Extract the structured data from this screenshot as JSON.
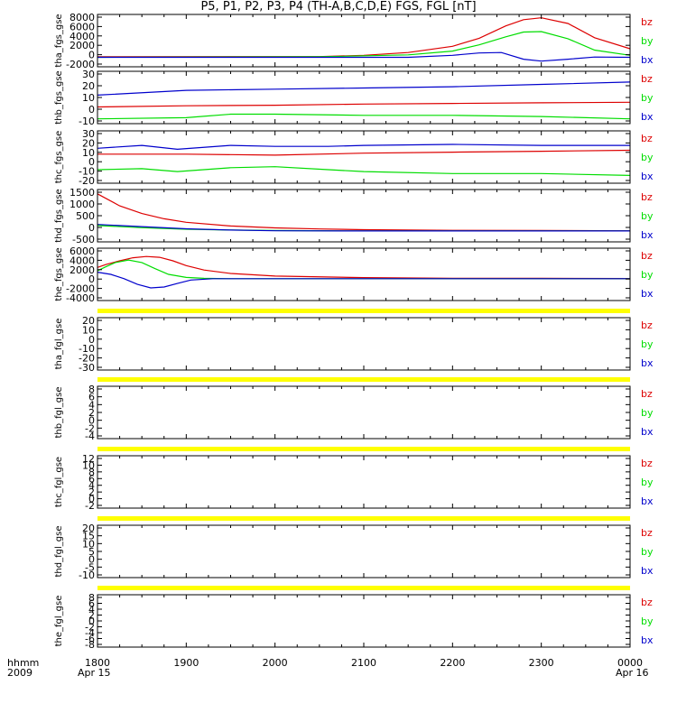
{
  "title": "P5, P1, P2, P3, P4 (TH-A,B,C,D,E) FGS, FGL [nT]",
  "footer": {
    "left_label_1": "hhmm",
    "left_label_2": "2009",
    "date_start": "Apr 15",
    "date_end": "Apr 16"
  },
  "colors": {
    "bz": "#dd0000",
    "by": "#00dd00",
    "bx": "#0000cc",
    "bar": "#ffff00"
  },
  "chart_data": {
    "type": "line",
    "x_axis": {
      "range": [
        "1800",
        "0000"
      ],
      "ticks": [
        "1800",
        "1900",
        "2000",
        "2100",
        "2200",
        "2300",
        "0000"
      ]
    },
    "legend_entries": [
      "bz",
      "by",
      "bx"
    ],
    "panels": [
      {
        "ylabel": "tha_fgs_gse",
        "ylim": [
          -2000,
          9000
        ],
        "yticks": [
          "8000",
          "6000",
          "4000",
          "2000",
          "0",
          "-2000"
        ],
        "series": [
          {
            "name": "bz",
            "x": [
              0,
              2.5,
              3,
              3.5,
              4,
              4.3,
              4.6,
              4.8,
              5,
              5.3,
              5.6,
              6
            ],
            "y": [
              100,
              150,
              400,
              1000,
              2300,
              4000,
              6600,
              7900,
              8300,
              7100,
              4100,
              1800
            ]
          },
          {
            "name": "by",
            "x": [
              0,
              2.5,
              3.5,
              4,
              4.3,
              4.6,
              4.8,
              5,
              5.3,
              5.6,
              6
            ],
            "y": [
              0,
              100,
              500,
              1300,
              2600,
              4300,
              5300,
              5400,
              3900,
              1500,
              400
            ]
          },
          {
            "name": "bx",
            "x": [
              0,
              3.5,
              4,
              4.3,
              4.55,
              4.8,
              5,
              5.3,
              5.6,
              6
            ],
            "y": [
              0,
              0,
              400,
              900,
              1000,
              -400,
              -800,
              -400,
              50,
              0
            ]
          }
        ]
      },
      {
        "ylabel": "thb_fgs_gse",
        "ylim": [
          -12,
          32
        ],
        "yticks": [
          "30",
          "20",
          "10",
          "0",
          "-10"
        ],
        "series": [
          {
            "name": "bz",
            "x": [
              0,
              1,
              2,
              3,
              4,
              5,
              6
            ],
            "y": [
              2,
              3,
              3.5,
              4.5,
              5,
              5.5,
              6
            ]
          },
          {
            "name": "by",
            "x": [
              0,
              1,
              1.5,
              2,
              3,
              4,
              5,
              6
            ],
            "y": [
              -8,
              -7,
              -4,
              -4,
              -5,
              -5,
              -6,
              -8
            ]
          },
          {
            "name": "bx",
            "x": [
              0,
              1,
              2,
              3,
              4,
              5,
              6
            ],
            "y": [
              12,
              16,
              17,
              18,
              19,
              21,
              23
            ]
          }
        ]
      },
      {
        "ylabel": "thc_fgs_gse",
        "ylim": [
          -22,
          32
        ],
        "yticks": [
          "30",
          "20",
          "10",
          "0",
          "-10",
          "-20"
        ],
        "series": [
          {
            "name": "bz",
            "x": [
              0,
              1,
              2,
              3,
              4,
              5,
              6
            ],
            "y": [
              8,
              8,
              7,
              9,
              10,
              11,
              12
            ]
          },
          {
            "name": "by",
            "x": [
              0,
              0.5,
              0.9,
              1.5,
              2,
              2.6,
              3,
              4,
              5,
              6
            ],
            "y": [
              -8,
              -7,
              -10,
              -6,
              -5,
              -8,
              -10,
              -12,
              -12,
              -14
            ]
          },
          {
            "name": "bx",
            "x": [
              0,
              0.5,
              0.9,
              1.5,
              2,
              2.6,
              3,
              4,
              5,
              6
            ],
            "y": [
              14,
              17,
              13,
              17,
              16,
              16,
              17,
              18,
              17,
              17
            ]
          }
        ]
      },
      {
        "ylabel": "thd_fgs_gse",
        "ylim": [
          -500,
          1900
        ],
        "yticks": [
          "1500",
          "1000",
          "500",
          "0",
          "-500"
        ],
        "series": [
          {
            "name": "bz",
            "x": [
              0,
              0.25,
              0.5,
              0.75,
              1,
              1.5,
              2,
              2.5,
              3,
              3.5,
              4,
              5,
              6
            ],
            "y": [
              1700,
              1150,
              800,
              560,
              400,
              230,
              140,
              90,
              60,
              40,
              30,
              20,
              10
            ]
          },
          {
            "name": "by",
            "x": [
              0,
              0.5,
              1,
              1.5,
              2,
              3,
              4,
              6
            ],
            "y": [
              250,
              150,
              80,
              40,
              20,
              0,
              0,
              0
            ]
          },
          {
            "name": "bx",
            "x": [
              0,
              0.5,
              1,
              1.5,
              2,
              3,
              4,
              6
            ],
            "y": [
              300,
              200,
              100,
              40,
              10,
              0,
              0,
              0
            ]
          }
        ]
      },
      {
        "ylabel": "the_fgs_gse",
        "ylim": [
          -5000,
          7000
        ],
        "yticks": [
          "6000",
          "4000",
          "2000",
          "0",
          "-2000",
          "-4000"
        ],
        "series": [
          {
            "name": "bz",
            "x": [
              0,
              0.1,
              0.25,
              0.4,
              0.55,
              0.7,
              0.85,
              1,
              1.2,
              1.5,
              2,
              3,
              4,
              5,
              6
            ],
            "y": [
              2600,
              3300,
              4100,
              4800,
              5100,
              4900,
              4100,
              3000,
              2000,
              1200,
              600,
              250,
              120,
              80,
              40
            ]
          },
          {
            "name": "by",
            "x": [
              0,
              0.1,
              0.2,
              0.35,
              0.5,
              0.65,
              0.8,
              1,
              1.2,
              1.5,
              2,
              6
            ],
            "y": [
              1800,
              2800,
              3700,
              4300,
              3700,
              2300,
              1000,
              300,
              100,
              0,
              0,
              0
            ]
          },
          {
            "name": "bx",
            "x": [
              0,
              0.15,
              0.3,
              0.45,
              0.6,
              0.75,
              0.9,
              1.05,
              1.3,
              1.6,
              2,
              6
            ],
            "y": [
              1500,
              1000,
              0,
              -1300,
              -2100,
              -1900,
              -1100,
              -300,
              0,
              0,
              0,
              0
            ]
          }
        ]
      },
      {
        "ylabel": "tha_fgl_gse",
        "ylim": [
          -33,
          24
        ],
        "yticks": [
          "20",
          "10",
          "0",
          "-10",
          "-20",
          "-30"
        ],
        "series": []
      },
      {
        "ylabel": "thb_fgl_gse",
        "ylim": [
          -5,
          9
        ],
        "yticks": [
          "8",
          "6",
          "4",
          "2",
          "0",
          "-2",
          "-4"
        ],
        "series": []
      },
      {
        "ylabel": "thc_fgl_gse",
        "ylim": [
          -3,
          13
        ],
        "yticks": [
          "12",
          "10",
          "8",
          "6",
          "4",
          "2",
          "0",
          "-2"
        ],
        "series": []
      },
      {
        "ylabel": "thd_fgl_gse",
        "ylim": [
          -12,
          22
        ],
        "yticks": [
          "20",
          "15",
          "10",
          "5",
          "0",
          "-5",
          "-10"
        ],
        "series": []
      },
      {
        "ylabel": "the_fgl_gse",
        "ylim": [
          -9,
          9
        ],
        "yticks": [
          "8",
          "6",
          "4",
          "2",
          "0",
          "-2",
          "-4",
          "-6",
          "-8"
        ],
        "series": []
      }
    ]
  }
}
